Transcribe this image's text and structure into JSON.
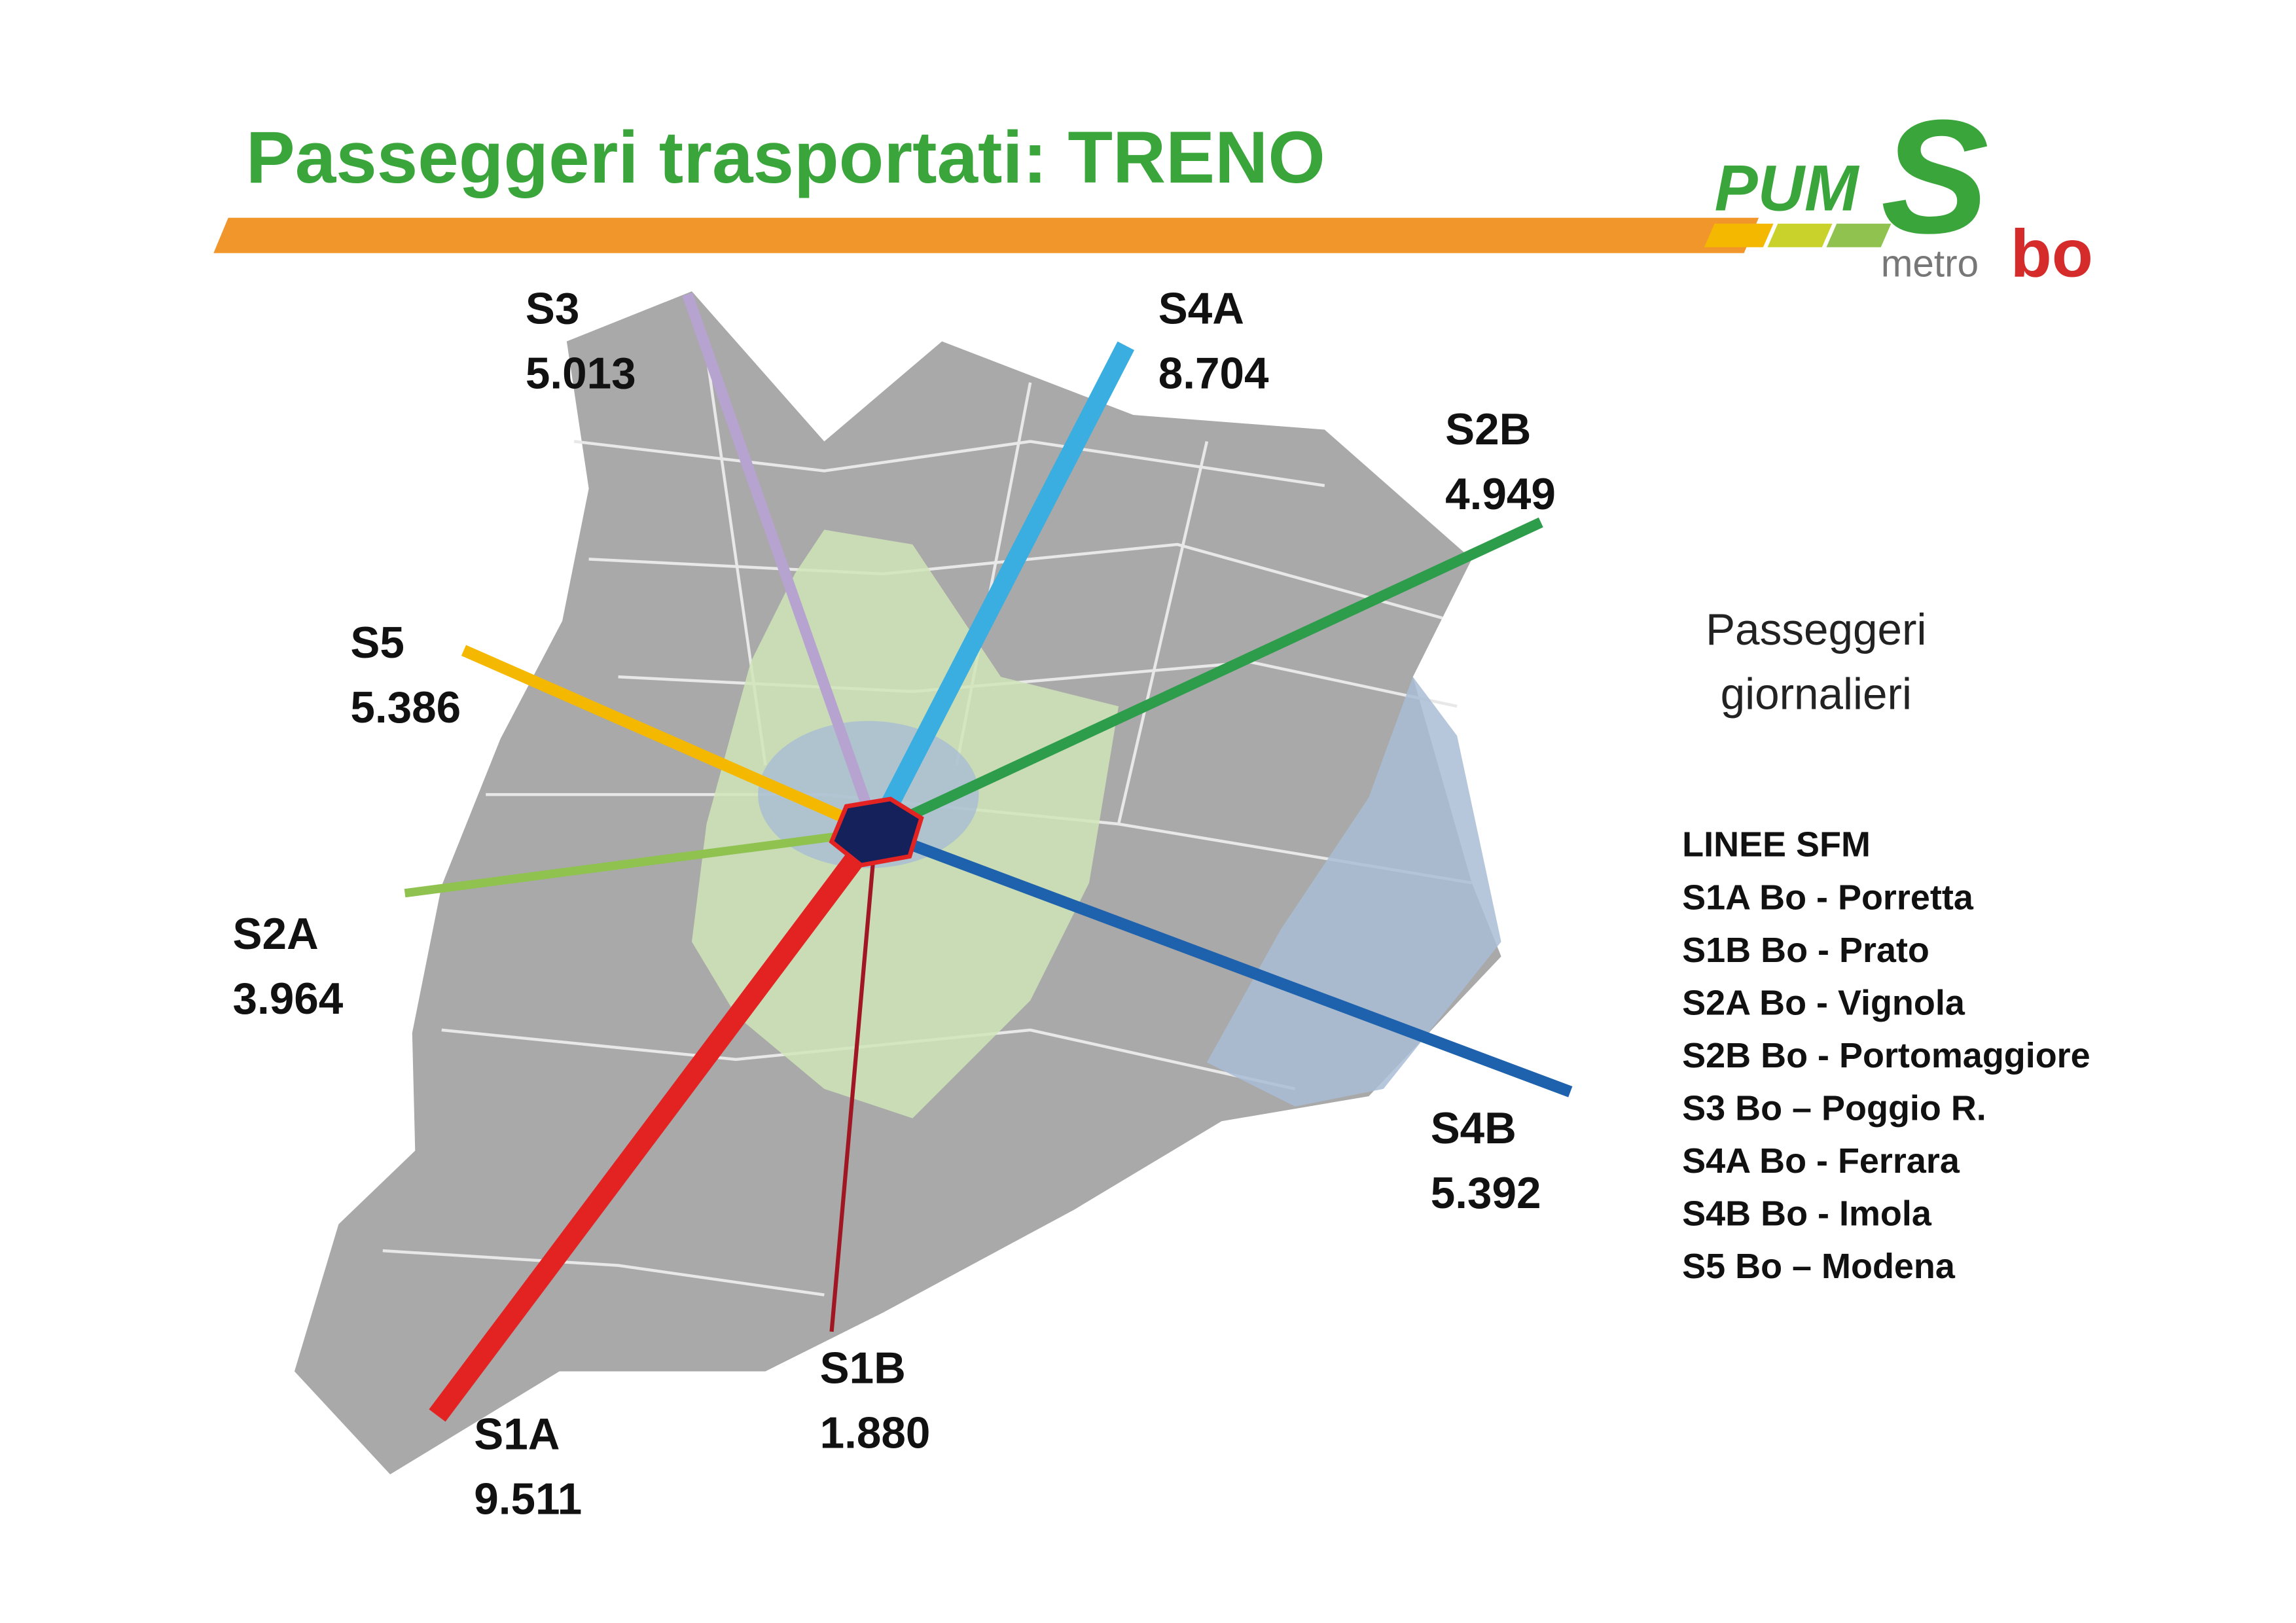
{
  "header": {
    "title": "Passeggeri trasportati: TRENO",
    "logo": {
      "pum": "PUM",
      "s": "S",
      "metro": "metro",
      "bo": "bo"
    }
  },
  "lines": [
    {
      "name": "S3",
      "passengers": 5013,
      "label": "5.013",
      "color": "#b6a3cf"
    },
    {
      "name": "S4A",
      "passengers": 8704,
      "label": "8.704",
      "color": "#3aaee0"
    },
    {
      "name": "S2B",
      "passengers": 4949,
      "label": "4.949",
      "color": "#2e9d4b"
    },
    {
      "name": "S5",
      "passengers": 5386,
      "label": "5.386",
      "color": "#f5b800"
    },
    {
      "name": "S2A",
      "passengers": 3964,
      "label": "3.964",
      "color": "#8fc24f"
    },
    {
      "name": "S1A",
      "passengers": 9511,
      "label": "9.511",
      "color": "#e32322"
    },
    {
      "name": "S1B",
      "passengers": 1880,
      "label": "1.880",
      "color": "#a01622"
    },
    {
      "name": "S4B",
      "passengers": 5392,
      "label": "5.392",
      "color": "#1e62ad"
    }
  ],
  "legend": {
    "caption": [
      "Passeggeri",
      "giornalieri"
    ],
    "title": "LINEE SFM",
    "items": [
      "S1A Bo - Porretta",
      "S1B Bo - Prato",
      "S2A Bo - Vignola",
      "S2B Bo - Portomaggiore",
      "S3 Bo – Poggio R.",
      "S4A Bo - Ferrara",
      "S4B Bo - Imola",
      "S5 Bo – Modena"
    ]
  }
}
